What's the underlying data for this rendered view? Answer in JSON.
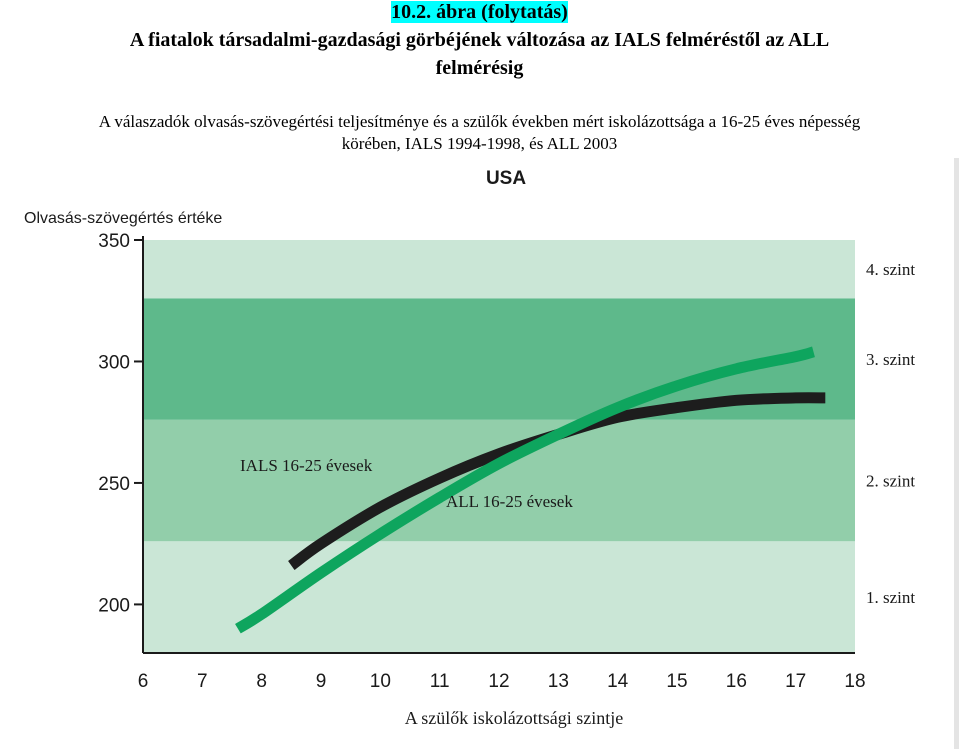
{
  "header": {
    "figure_number": "10.2. ábra (folytatás)",
    "title_line1": "A fiatalok társadalmi-gazdasági görbéjének változása az IALS felméréstől az ALL",
    "title_line2": "felmérésig",
    "subtitle_line1": "A válaszadók olvasás-szövegértési teljesítménye és a szülők években mért iskolázottsága a 16-25 éves népesség",
    "subtitle_line2": "körében, IALS 1994-1998, és ALL 2003"
  },
  "colors": {
    "band_light": "#cae6d6",
    "band_mid": "#92ceaa",
    "band_dark": "#5eb98b",
    "ials_line": "#1d1d1d",
    "all_line": "#0ea55e",
    "axis": "#1a1a1a"
  },
  "chart_data": {
    "type": "line",
    "title": "USA",
    "ylabel": "Olvasás-szövegértés értéke",
    "xlabel": "A szülők iskolázottsági szintje",
    "xlim": [
      6,
      18
    ],
    "ylim": [
      180,
      350
    ],
    "x_ticks": [
      "6",
      "7",
      "8",
      "9",
      "10",
      "11",
      "12",
      "13",
      "14",
      "15",
      "16",
      "17",
      "18"
    ],
    "y_ticks": [
      "200",
      "250",
      "300",
      "350"
    ],
    "levels": [
      {
        "label": "1. szint",
        "from": 180,
        "to": 226,
        "shade": "band_light"
      },
      {
        "label": "2. szint",
        "from": 226,
        "to": 276,
        "shade": "band_mid"
      },
      {
        "label": "3. szint",
        "from": 276,
        "to": 326,
        "shade": "band_dark"
      },
      {
        "label": "4. szint",
        "from": 326,
        "to": 350,
        "shade": "band_light"
      }
    ],
    "series": [
      {
        "name": "IALS 16-25 évesek",
        "color": "ials_line",
        "x": [
          8.5,
          9,
          10,
          11,
          12,
          13,
          14,
          15,
          16,
          17,
          17.5
        ],
        "y": [
          216,
          225,
          240,
          252,
          262,
          270,
          277,
          281,
          284,
          285,
          285
        ]
      },
      {
        "name": "ALL 16-25 évesek",
        "color": "all_line",
        "x": [
          7.6,
          8,
          9,
          10,
          11,
          12,
          13,
          14,
          15,
          16,
          17,
          17.3
        ],
        "y": [
          190,
          196,
          213,
          229,
          244,
          258,
          270,
          281,
          290,
          297,
          302,
          304
        ]
      }
    ],
    "level_labels": [
      "4. szint",
      "3. szint",
      "2. szint",
      "1. szint"
    ],
    "annotations": [
      "IALS 16-25 évesek",
      "ALL 16-25 évesek"
    ],
    "grid": false,
    "legend": "none"
  }
}
